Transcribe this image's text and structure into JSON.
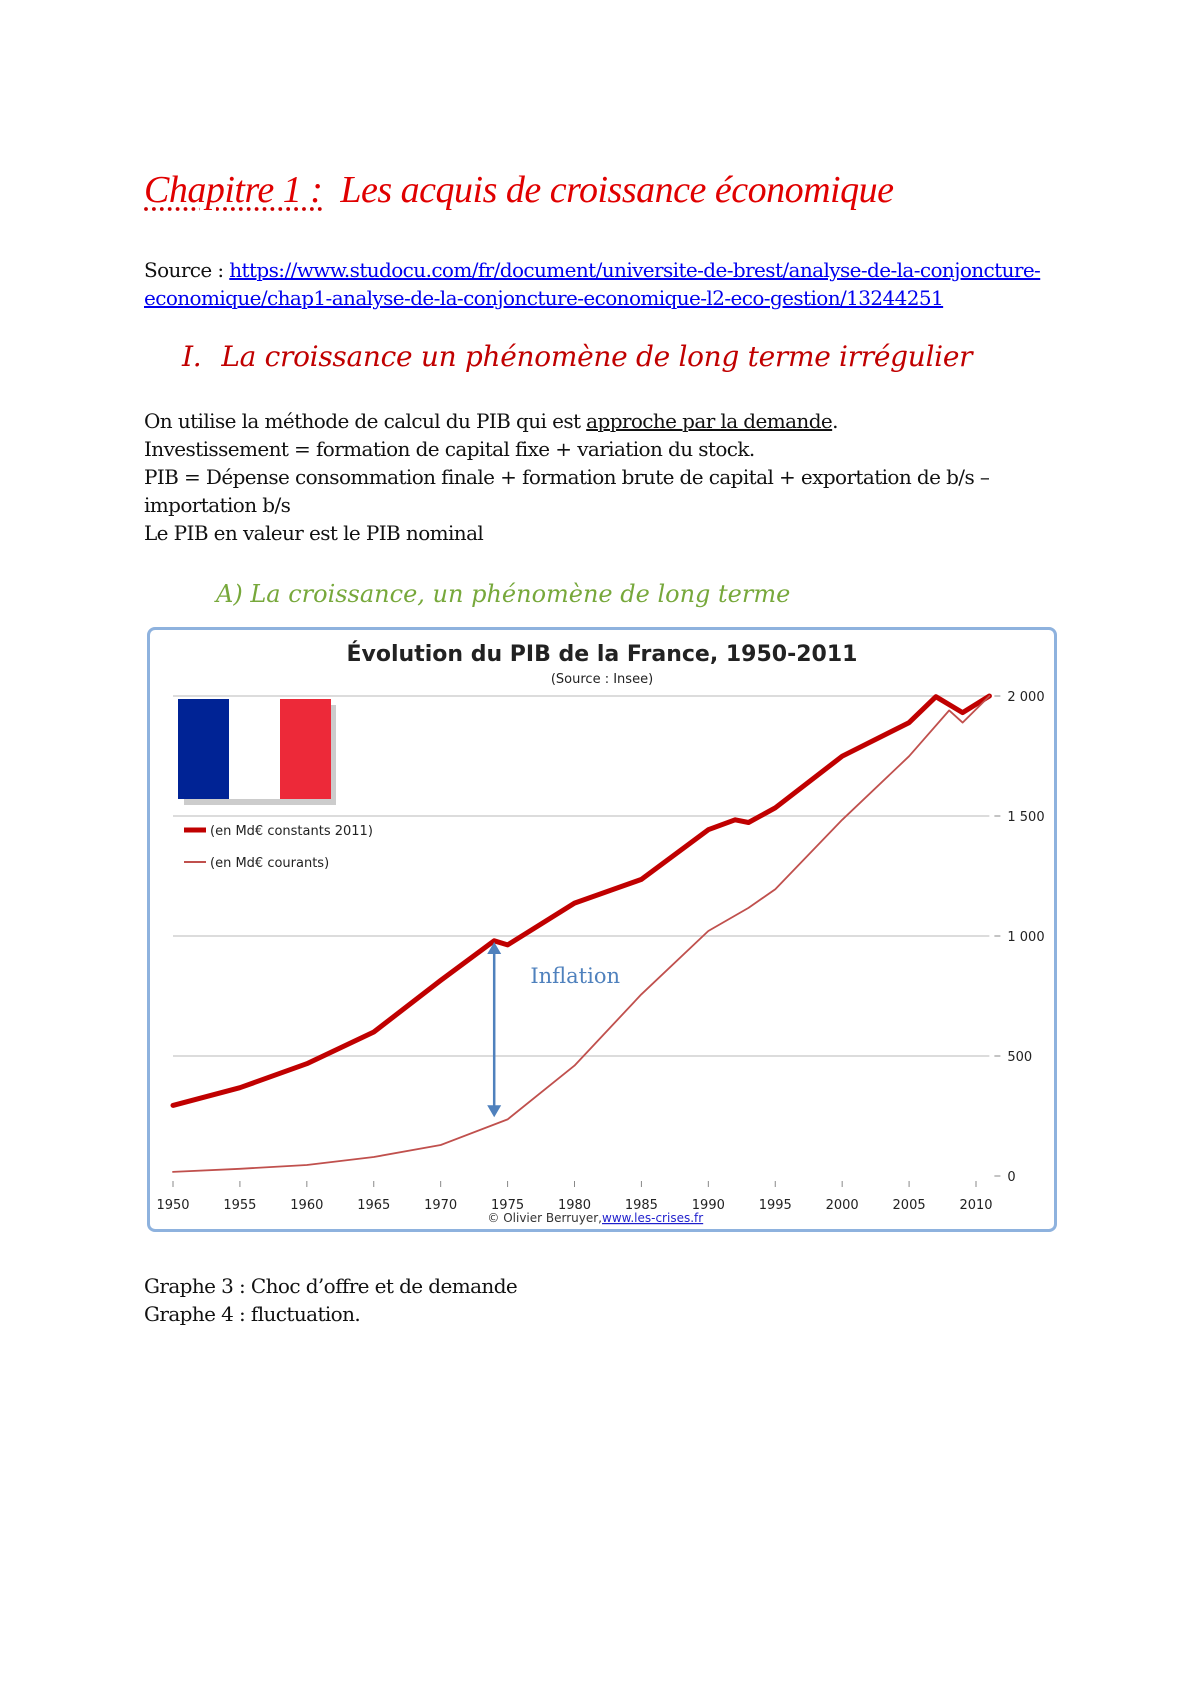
{
  "title": {
    "chapter": "Chapitre 1 :",
    "text": "Les acquis de croissance économique"
  },
  "source": {
    "label": "Source : ",
    "link_line1": "https://www.studocu.com/fr/document/universite-de-brest/analyse-de-la-conjoncture-",
    "link_line2": "economique/chap1-analyse-de-la-conjoncture-economique-l2-eco-gestion/13244251"
  },
  "section1": {
    "number": "I.",
    "title": "La croissance un phénomène de long terme irrégulier"
  },
  "body": {
    "line1_prefix": "On utilise la méthode de calcul du PIB qui est ",
    "line1_underlined": "approche par la demande",
    "line1_suffix": ".",
    "line2": "Investissement = formation de capital fixe + variation du stock.",
    "line3": "PIB = Dépense consommation finale + formation brute de capital + exportation de b/s –",
    "line4": "importation b/s",
    "line5": "Le PIB en valeur est le PIB nominal"
  },
  "subsection_a": "A) La croissance, un phénomène de long terme",
  "chart_data": {
    "type": "line",
    "title": "Évolution du PIB de la France, 1950-2011",
    "subtitle": "(Source : Insee)",
    "credit_prefix": "© Olivier Berruyer, ",
    "credit_link": "www.les-crises.fr",
    "annotation": "Inflation",
    "xlabel": "",
    "ylabel": "",
    "xlim": [
      1950,
      2011
    ],
    "ylim": [
      0,
      2000
    ],
    "x_ticks": [
      "1950",
      "1955",
      "1960",
      "1965",
      "1970",
      "1975",
      "1980",
      "1985",
      "1990",
      "1995",
      "2000",
      "2005",
      "2010"
    ],
    "y_ticks": [
      "0",
      "500",
      "1 000",
      "1 500",
      "2 000"
    ],
    "grid": true,
    "legend_position": "left",
    "series": [
      {
        "name": "(en Md€ constants 2011)",
        "color": "#c00000",
        "x": [
          1950,
          1955,
          1960,
          1965,
          1970,
          1974,
          1975,
          1980,
          1985,
          1990,
          1992,
          1993,
          1995,
          2000,
          2005,
          2007,
          2009,
          2011
        ],
        "values": [
          294,
          368,
          468,
          600,
          815,
          980,
          963,
          1137,
          1236,
          1443,
          1484,
          1473,
          1534,
          1749,
          1889,
          1997,
          1931,
          2000
        ]
      },
      {
        "name": "(en Md€ courants)",
        "color": "#c0504d",
        "x": [
          1950,
          1955,
          1960,
          1965,
          1970,
          1975,
          1980,
          1985,
          1990,
          1993,
          1995,
          2000,
          2005,
          2008,
          2009,
          2011
        ],
        "values": [
          17,
          30,
          46,
          79,
          129,
          236,
          460,
          757,
          1021,
          1117,
          1195,
          1484,
          1749,
          1940,
          1889,
          2000
        ]
      }
    ],
    "flag_colors": [
      "#002395",
      "#ffffff",
      "#ed2939"
    ],
    "arrow_color": "#4f81bd"
  },
  "footer": {
    "line1": "Graphe 3 : Choc d’offre et de demande",
    "line2": "Graphe 4 : fluctuation."
  }
}
